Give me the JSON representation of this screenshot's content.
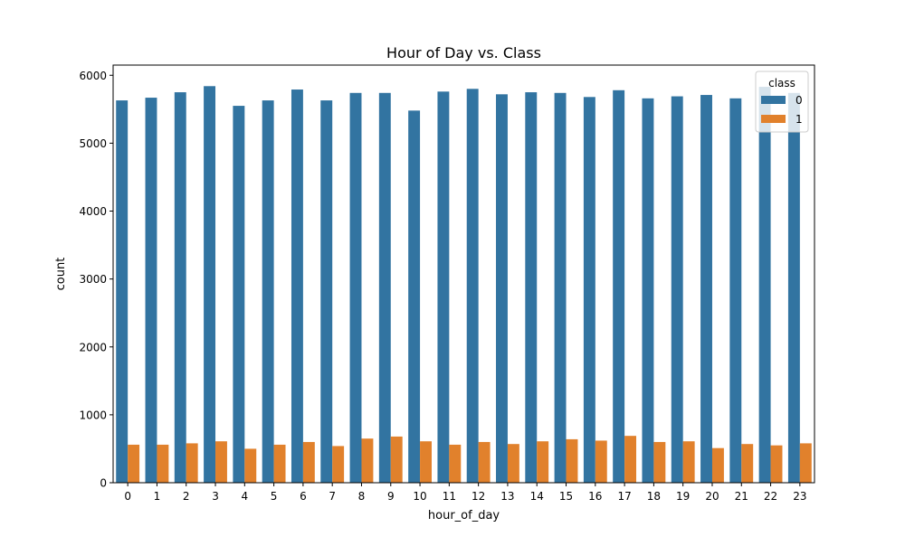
{
  "chart_data": {
    "type": "bar",
    "title": "Hour of Day vs. Class",
    "xlabel": "hour_of_day",
    "ylabel": "count",
    "categories": [
      "0",
      "1",
      "2",
      "3",
      "4",
      "5",
      "6",
      "7",
      "8",
      "9",
      "10",
      "11",
      "12",
      "13",
      "14",
      "15",
      "16",
      "17",
      "18",
      "19",
      "20",
      "21",
      "22",
      "23"
    ],
    "series": [
      {
        "name": "0",
        "color": "#3274a1",
        "values": [
          5630,
          5670,
          5750,
          5840,
          5550,
          5630,
          5790,
          5630,
          5740,
          5740,
          5480,
          5760,
          5800,
          5720,
          5750,
          5740,
          5680,
          5780,
          5660,
          5690,
          5710,
          5660,
          5830,
          5740
        ]
      },
      {
        "name": "1",
        "color": "#e1812c",
        "values": [
          560,
          560,
          580,
          610,
          500,
          560,
          600,
          540,
          650,
          680,
          610,
          560,
          600,
          570,
          610,
          640,
          620,
          690,
          600,
          610,
          510,
          570,
          550,
          580
        ]
      }
    ],
    "ylim": [
      0,
      6150
    ],
    "yticks": [
      0,
      1000,
      2000,
      3000,
      4000,
      5000,
      6000
    ],
    "legend": {
      "title": "class",
      "placement": "top-right",
      "entries": [
        "0",
        "1"
      ]
    },
    "grid": false
  }
}
